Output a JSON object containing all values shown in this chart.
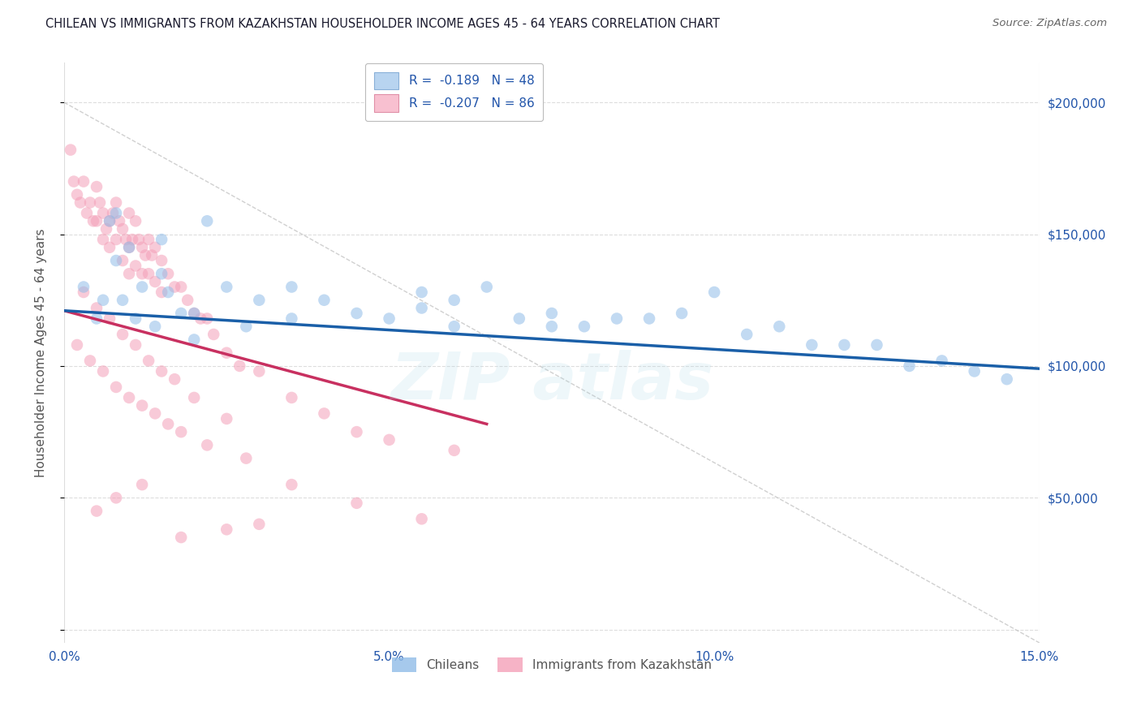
{
  "title": "CHILEAN VS IMMIGRANTS FROM KAZAKHSTAN HOUSEHOLDER INCOME AGES 45 - 64 YEARS CORRELATION CHART",
  "source": "Source: ZipAtlas.com",
  "ylabel": "Householder Income Ages 45 - 64 years",
  "xlim": [
    0.0,
    15.0
  ],
  "ylim": [
    -5000,
    215000
  ],
  "yticks": [
    0,
    50000,
    100000,
    150000,
    200000
  ],
  "ytick_labels_right": [
    "",
    "$50,000",
    "$100,000",
    "$150,000",
    "$200,000"
  ],
  "xtick_positions": [
    0,
    5,
    10,
    15
  ],
  "xtick_labels": [
    "0.0%",
    "5.0%",
    "10.0%",
    "15.0%"
  ],
  "axis_label_color": "#2255aa",
  "title_color": "#1a1a2e",
  "source_color": "#666666",
  "blue_scatter_color": "#90bce8",
  "pink_scatter_color": "#f4a0b8",
  "blue_line_color": "#1a5fa8",
  "pink_line_color": "#c83060",
  "dashed_line_color": "#c8c8c8",
  "grid_color": "#dddddd",
  "scatter_alpha": 0.55,
  "scatter_size": 110,
  "legend1_blue_color": "#b8d4f0",
  "legend1_pink_color": "#f8c0d0",
  "blue_line_x0": 0.0,
  "blue_line_y0": 121000,
  "blue_line_x1": 15.0,
  "blue_line_y1": 99000,
  "pink_line_x0": 0.0,
  "pink_line_y0": 121000,
  "pink_line_x1": 6.5,
  "pink_line_y1": 78000,
  "dashed_x0": 0.0,
  "dashed_y0": 200000,
  "dashed_x1": 15.0,
  "dashed_y1": -5000,
  "blue_x": [
    0.3,
    0.5,
    0.6,
    0.7,
    0.8,
    0.9,
    1.0,
    1.1,
    1.2,
    1.4,
    1.5,
    1.6,
    1.8,
    2.0,
    2.2,
    2.5,
    2.8,
    3.0,
    3.5,
    4.0,
    4.5,
    5.0,
    5.5,
    6.0,
    6.5,
    7.0,
    7.5,
    8.0,
    9.0,
    10.0,
    11.0,
    12.0,
    13.0,
    14.0,
    14.5,
    2.0,
    3.5,
    5.5,
    7.5,
    9.5,
    11.5,
    13.5,
    0.8,
    1.5,
    6.0,
    8.5,
    10.5,
    12.5
  ],
  "blue_y": [
    130000,
    118000,
    125000,
    155000,
    140000,
    125000,
    145000,
    118000,
    130000,
    115000,
    135000,
    128000,
    120000,
    120000,
    155000,
    130000,
    115000,
    125000,
    130000,
    125000,
    120000,
    118000,
    128000,
    125000,
    130000,
    118000,
    120000,
    115000,
    118000,
    128000,
    115000,
    108000,
    100000,
    98000,
    95000,
    110000,
    118000,
    122000,
    115000,
    120000,
    108000,
    102000,
    158000,
    148000,
    115000,
    118000,
    112000,
    108000
  ],
  "pink_x": [
    0.1,
    0.15,
    0.2,
    0.25,
    0.3,
    0.35,
    0.4,
    0.45,
    0.5,
    0.5,
    0.55,
    0.6,
    0.6,
    0.65,
    0.7,
    0.7,
    0.75,
    0.8,
    0.8,
    0.85,
    0.9,
    0.9,
    0.95,
    1.0,
    1.0,
    1.0,
    1.05,
    1.1,
    1.1,
    1.15,
    1.2,
    1.2,
    1.25,
    1.3,
    1.3,
    1.35,
    1.4,
    1.4,
    1.5,
    1.5,
    1.6,
    1.7,
    1.8,
    1.9,
    2.0,
    2.1,
    2.2,
    2.3,
    2.5,
    2.7,
    3.0,
    3.5,
    4.0,
    4.5,
    5.0,
    6.0,
    0.3,
    0.5,
    0.7,
    0.9,
    1.1,
    1.3,
    1.5,
    1.7,
    2.0,
    2.5,
    0.2,
    0.4,
    0.6,
    0.8,
    1.0,
    1.2,
    1.4,
    1.6,
    1.8,
    2.2,
    2.8,
    3.5,
    4.5,
    5.5,
    0.5,
    0.8,
    1.2,
    3.0,
    2.5,
    1.8
  ],
  "pink_y": [
    182000,
    170000,
    165000,
    162000,
    170000,
    158000,
    162000,
    155000,
    168000,
    155000,
    162000,
    148000,
    158000,
    152000,
    155000,
    145000,
    158000,
    162000,
    148000,
    155000,
    152000,
    140000,
    148000,
    158000,
    145000,
    135000,
    148000,
    155000,
    138000,
    148000,
    145000,
    135000,
    142000,
    148000,
    135000,
    142000,
    145000,
    132000,
    140000,
    128000,
    135000,
    130000,
    130000,
    125000,
    120000,
    118000,
    118000,
    112000,
    105000,
    100000,
    98000,
    88000,
    82000,
    75000,
    72000,
    68000,
    128000,
    122000,
    118000,
    112000,
    108000,
    102000,
    98000,
    95000,
    88000,
    80000,
    108000,
    102000,
    98000,
    92000,
    88000,
    85000,
    82000,
    78000,
    75000,
    70000,
    65000,
    55000,
    48000,
    42000,
    45000,
    50000,
    55000,
    40000,
    38000,
    35000
  ]
}
